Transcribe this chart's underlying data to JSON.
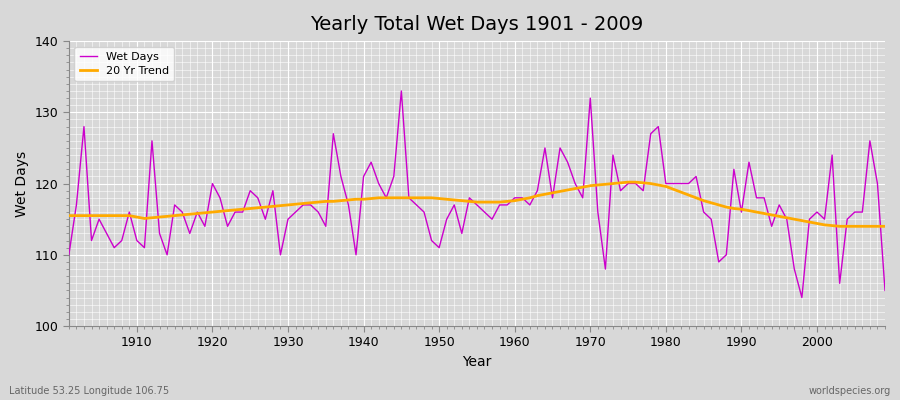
{
  "title": "Yearly Total Wet Days 1901 - 2009",
  "xlabel": "Year",
  "ylabel": "Wet Days",
  "xlim": [
    1901,
    2009
  ],
  "ylim": [
    100,
    140
  ],
  "yticks": [
    100,
    110,
    120,
    130,
    140
  ],
  "xticks": [
    1910,
    1920,
    1930,
    1940,
    1950,
    1960,
    1970,
    1980,
    1990,
    2000
  ],
  "wet_days_color": "#cc00cc",
  "trend_color": "#ffaa00",
  "background_color": "#d8d8d8",
  "plot_bg_color": "#d8d8d8",
  "subtitle_left": "Latitude 53.25 Longitude 106.75",
  "subtitle_right": "worldspecies.org",
  "legend_wet": "Wet Days",
  "legend_trend": "20 Yr Trend",
  "years": [
    1901,
    1902,
    1903,
    1904,
    1905,
    1906,
    1907,
    1908,
    1909,
    1910,
    1911,
    1912,
    1913,
    1914,
    1915,
    1916,
    1917,
    1918,
    1919,
    1920,
    1921,
    1922,
    1923,
    1924,
    1925,
    1926,
    1927,
    1928,
    1929,
    1930,
    1931,
    1932,
    1933,
    1934,
    1935,
    1936,
    1937,
    1938,
    1939,
    1940,
    1941,
    1942,
    1943,
    1944,
    1945,
    1946,
    1947,
    1948,
    1949,
    1950,
    1951,
    1952,
    1953,
    1954,
    1955,
    1956,
    1957,
    1958,
    1959,
    1960,
    1961,
    1962,
    1963,
    1964,
    1965,
    1966,
    1967,
    1968,
    1969,
    1970,
    1971,
    1972,
    1973,
    1974,
    1975,
    1976,
    1977,
    1978,
    1979,
    1980,
    1981,
    1982,
    1983,
    1984,
    1985,
    1986,
    1987,
    1988,
    1989,
    1990,
    1991,
    1992,
    1993,
    1994,
    1995,
    1996,
    1997,
    1998,
    1999,
    2000,
    2001,
    2002,
    2003,
    2004,
    2005,
    2006,
    2007,
    2008,
    2009
  ],
  "wet_days": [
    110,
    117,
    128,
    112,
    115,
    113,
    111,
    112,
    116,
    112,
    111,
    126,
    113,
    110,
    117,
    116,
    113,
    116,
    114,
    120,
    118,
    114,
    116,
    116,
    119,
    118,
    115,
    119,
    110,
    115,
    116,
    117,
    117,
    116,
    114,
    127,
    121,
    117,
    110,
    121,
    123,
    120,
    118,
    121,
    133,
    118,
    117,
    116,
    112,
    111,
    115,
    117,
    113,
    118,
    117,
    116,
    115,
    117,
    117,
    118,
    118,
    117,
    119,
    125,
    118,
    125,
    123,
    120,
    118,
    132,
    116,
    108,
    124,
    119,
    120,
    120,
    119,
    127,
    128,
    120,
    120,
    120,
    120,
    121,
    116,
    115,
    109,
    110,
    122,
    116,
    123,
    118,
    118,
    114,
    117,
    115,
    108,
    104,
    115,
    116,
    115,
    124,
    106,
    115,
    116,
    116,
    126,
    120,
    105
  ],
  "trend_values": [
    115.5,
    115.5,
    115.5,
    115.5,
    115.5,
    115.5,
    115.5,
    115.5,
    115.5,
    115.3,
    115.1,
    115.2,
    115.3,
    115.4,
    115.5,
    115.6,
    115.7,
    115.8,
    115.9,
    116.0,
    116.1,
    116.2,
    116.3,
    116.4,
    116.5,
    116.6,
    116.7,
    116.8,
    116.9,
    117.0,
    117.1,
    117.2,
    117.3,
    117.4,
    117.5,
    117.5,
    117.6,
    117.7,
    117.8,
    117.8,
    117.9,
    118.0,
    118.0,
    118.0,
    118.0,
    118.0,
    118.0,
    118.0,
    118.0,
    117.9,
    117.8,
    117.7,
    117.6,
    117.5,
    117.4,
    117.4,
    117.4,
    117.4,
    117.5,
    117.6,
    117.8,
    118.0,
    118.3,
    118.5,
    118.7,
    118.9,
    119.1,
    119.3,
    119.5,
    119.7,
    119.8,
    119.9,
    120.0,
    120.1,
    120.2,
    120.2,
    120.1,
    120.0,
    119.8,
    119.6,
    119.2,
    118.8,
    118.4,
    118.0,
    117.6,
    117.3,
    117.0,
    116.7,
    116.5,
    116.4,
    116.2,
    116.0,
    115.8,
    115.6,
    115.4,
    115.2,
    115.0,
    114.8,
    114.6,
    114.4,
    114.2,
    114.1,
    114.0,
    114.0,
    114.0,
    114.0,
    114.0,
    114.0,
    114.0
  ]
}
